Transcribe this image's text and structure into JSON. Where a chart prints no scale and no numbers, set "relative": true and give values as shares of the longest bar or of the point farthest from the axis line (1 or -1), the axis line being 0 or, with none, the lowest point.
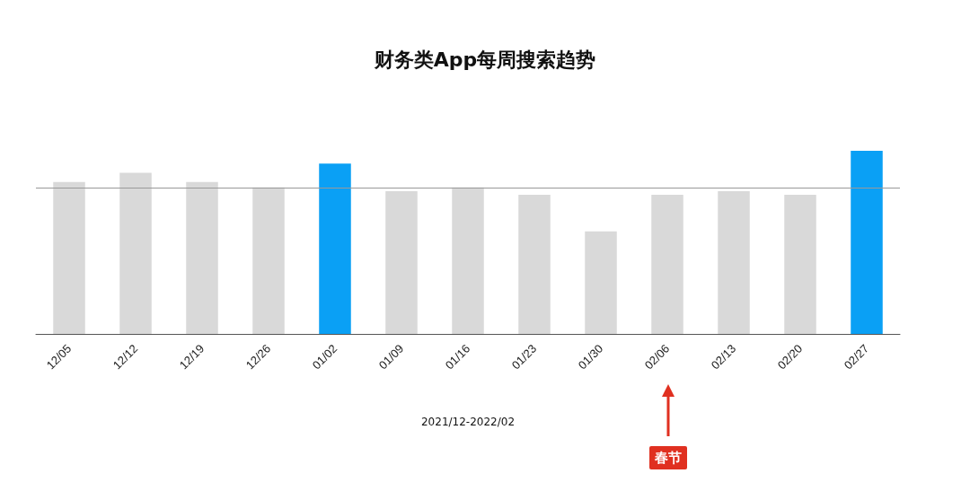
{
  "chart_data": {
    "type": "bar",
    "title": "财务类App每周搜索趋势",
    "xlabel": "2021/12-2022/02",
    "relative": true,
    "categories": [
      "12/05",
      "12/12",
      "12/19",
      "12/26",
      "01/02",
      "01/09",
      "01/16",
      "01/23",
      "01/30",
      "02/06",
      "02/13",
      "02/20",
      "02/27"
    ],
    "values": [
      0.83,
      0.88,
      0.83,
      0.8,
      0.93,
      0.78,
      0.8,
      0.76,
      0.56,
      0.76,
      0.78,
      0.76,
      1
    ],
    "colors": [
      "#d9d9d9",
      "#d9d9d9",
      "#d9d9d9",
      "#d9d9d9",
      "#0aa0f5",
      "#d9d9d9",
      "#d9d9d9",
      "#d9d9d9",
      "#d9d9d9",
      "#d9d9d9",
      "#d9d9d9",
      "#d9d9d9",
      "#0aa0f5"
    ],
    "ref_lines": [
      {
        "axis": "y",
        "value": 0.8,
        "color": "#999999"
      }
    ],
    "annotations": [
      "春节"
    ],
    "grid": false
  }
}
